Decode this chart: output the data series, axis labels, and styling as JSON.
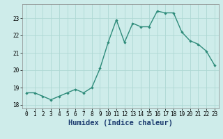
{
  "x": [
    0,
    1,
    2,
    3,
    4,
    5,
    6,
    7,
    8,
    9,
    10,
    11,
    12,
    13,
    14,
    15,
    16,
    17,
    18,
    19,
    20,
    21,
    22,
    23
  ],
  "y": [
    18.7,
    18.7,
    18.5,
    18.3,
    18.5,
    18.7,
    18.9,
    18.7,
    19.0,
    20.1,
    21.6,
    22.9,
    21.6,
    22.7,
    22.5,
    22.5,
    23.4,
    23.3,
    23.3,
    22.2,
    21.7,
    21.5,
    21.1,
    20.3
  ],
  "line_color": "#2e8b7a",
  "marker_color": "#2e8b7a",
  "bg_color": "#ceecea",
  "grid_color": "#aed8d4",
  "xlabel": "Humidex (Indice chaleur)",
  "xlabel_color": "#1a3a6e",
  "ylim": [
    17.8,
    23.8
  ],
  "xlim": [
    -0.5,
    23.5
  ],
  "yticks": [
    18,
    19,
    20,
    21,
    22,
    23
  ],
  "xticks": [
    0,
    1,
    2,
    3,
    4,
    5,
    6,
    7,
    8,
    9,
    10,
    11,
    12,
    13,
    14,
    15,
    16,
    17,
    18,
    19,
    20,
    21,
    22,
    23
  ],
  "tick_fontsize": 5.5,
  "xlabel_fontsize": 7.5,
  "line_width": 1.0,
  "marker_size": 2.2
}
